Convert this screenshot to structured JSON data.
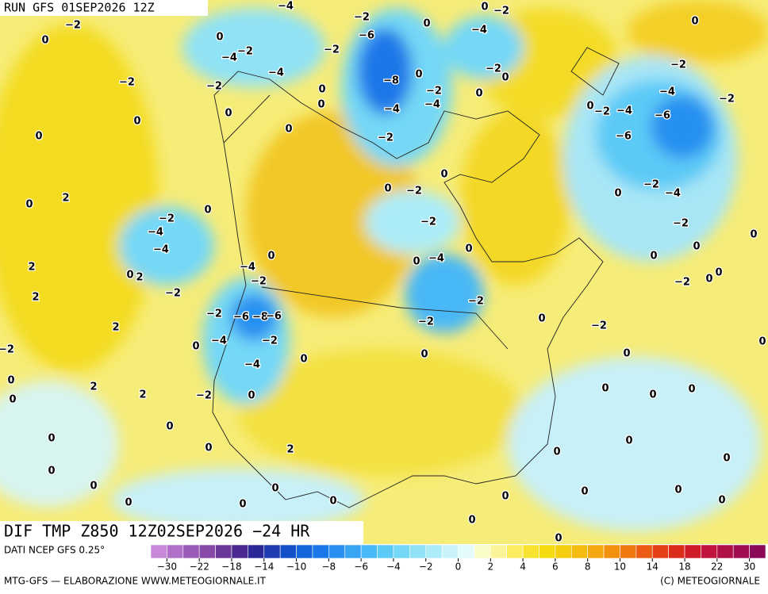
{
  "header": {
    "run": "RUN GFS 01SEP2026 12Z",
    "field": "DIF TMP Z850 12Z02SEP2026 −24 HR"
  },
  "footer": {
    "source": "DATI NCEP GFS 0.25°",
    "credit": "MTG-GFS — ELABORAZIONE WWW.METEOGIORNALE.IT",
    "copyright": "(C) METEOGIORNALE"
  },
  "colorbar": {
    "ticks": [
      "−30",
      "−22",
      "−18",
      "−14",
      "−10",
      "−8",
      "−6",
      "−4",
      "−2",
      "0",
      "2",
      "4",
      "6",
      "8",
      "10",
      "14",
      "18",
      "22",
      "30"
    ],
    "colors": [
      "#c88ad8",
      "#b070c8",
      "#9a5ab8",
      "#8848a8",
      "#6a3898",
      "#4a2890",
      "#2a2898",
      "#1e3cb0",
      "#1450c8",
      "#1464dc",
      "#1a78e8",
      "#2890f0",
      "#38a4f4",
      "#48b8f6",
      "#5ccaf6",
      "#74d8f6",
      "#90e2f6",
      "#acecf8",
      "#c8f4fa",
      "#e4fbfb",
      "#fafcc8",
      "#fcf498",
      "#fcec60",
      "#f8e430",
      "#f4dc10",
      "#f4cc10",
      "#f4bc10",
      "#f4a810",
      "#f49010",
      "#f07810",
      "#ec5c14",
      "#e44018",
      "#dc2c1c",
      "#d01c28",
      "#c0143c",
      "#b01048",
      "#a00c50",
      "#8c0858"
    ]
  },
  "map": {
    "contour_labels": [
      "−4",
      "0",
      "−2",
      "−2",
      "−2",
      "0",
      "−6",
      "−4",
      "0",
      "0",
      "0",
      "−2",
      "−4",
      "−2",
      "−2",
      "−4",
      "−2",
      "0",
      "−2",
      "−2",
      "−8",
      "0",
      "0",
      "−2",
      "−4",
      "−2",
      "0",
      "−4",
      "−4",
      "0",
      "0",
      "0",
      "−2",
      "−4",
      "−6",
      "0",
      "0",
      "−6",
      "0",
      "−2",
      "0",
      "0",
      "−2",
      "−2",
      "0",
      "−4",
      "2",
      "0",
      "0",
      "−2",
      "−2",
      "−2",
      "−4",
      "0",
      "−4",
      "0",
      "0",
      "0",
      "0",
      "0",
      "−4",
      "−4",
      "2",
      "0",
      "2",
      "−2",
      "−2",
      "0",
      "0",
      "−2",
      "2",
      "−2",
      "−2",
      "−6",
      "−8",
      "−6",
      "0",
      "−2",
      "−2",
      "2",
      "−2",
      "−4",
      "0",
      "−2",
      "0",
      "0",
      "0",
      "0",
      "−4",
      "0",
      "0",
      "2",
      "2",
      "−2",
      "0",
      "0",
      "0",
      "0",
      "0",
      "0",
      "0",
      "2",
      "0",
      "0",
      "0",
      "0",
      "0",
      "0",
      "0",
      "0",
      "0",
      "0",
      "0",
      "0",
      "0",
      "0",
      "0"
    ]
  }
}
